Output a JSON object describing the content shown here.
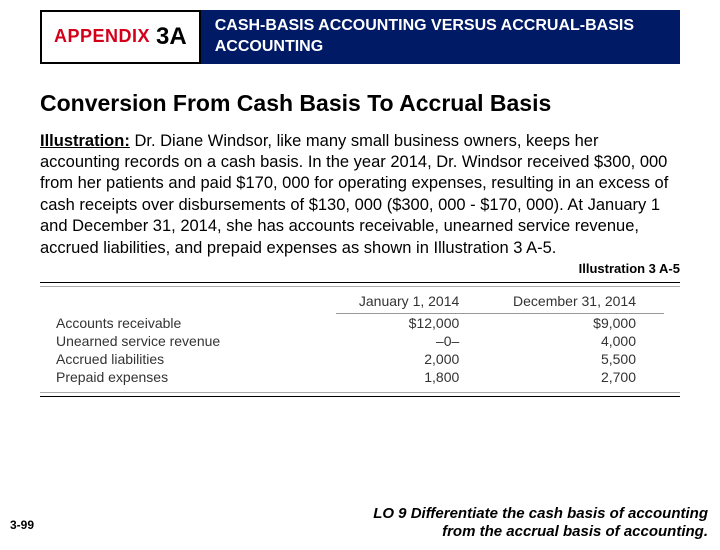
{
  "header": {
    "appendix_label": "APPENDIX",
    "appendix_code": "3A",
    "title": "CASH-BASIS ACCOUNTING VERSUS ACCRUAL-BASIS ACCOUNTING"
  },
  "section_heading": "Conversion From Cash Basis To Accrual Basis",
  "illustration_label": "Illustration:",
  "body_text": "Dr. Diane Windsor, like many small business owners, keeps her accounting records on a cash basis.  In the year 2014, Dr. Windsor received $300, 000 from her patients and paid $170, 000 for operating expenses, resulting in an excess of cash receipts over disbursements of $130, 000 ($300, 000 - $170, 000).  At January 1 and December 31, 2014, she has accounts receivable, unearned service revenue, accrued liabilities, and prepaid expenses as shown in Illustration 3 A-5.",
  "illustration_ref": "Illustration 3 A-5",
  "table": {
    "col1": "January 1, 2014",
    "col2": "December 31, 2014",
    "rows": [
      {
        "label": "Accounts receivable",
        "v1": "$12,000",
        "v2": "$9,000"
      },
      {
        "label": "Unearned service revenue",
        "v1": "–0–",
        "v2": "4,000"
      },
      {
        "label": "Accrued liabilities",
        "v1": "2,000",
        "v2": "5,500"
      },
      {
        "label": "Prepaid expenses",
        "v1": "1,800",
        "v2": "2,700"
      }
    ]
  },
  "footer": {
    "page": "3-99",
    "lo_line1": "LO 9  Differentiate the cash basis of accounting",
    "lo_line2": "from the accrual basis of accounting."
  }
}
